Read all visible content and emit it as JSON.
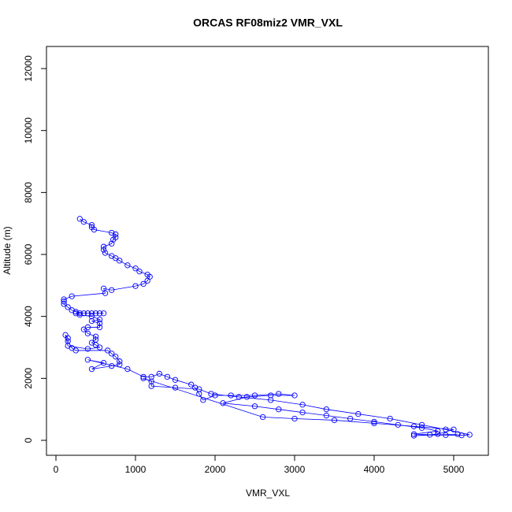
{
  "chart_data": {
    "type": "scatter",
    "title": "ORCAS RF08miz2 VMR_VXL",
    "x_label": "VMR_VXL",
    "y_label": "Altitude (m)",
    "color": "#0000ff",
    "lines": true,
    "xlim": [
      -119,
      5436
    ],
    "ylim": [
      -483,
      12713
    ],
    "xticks": [
      0,
      1000,
      2000,
      3000,
      4000,
      5000
    ],
    "yticks": [
      0,
      2000,
      4000,
      6000,
      8000,
      10000,
      12000
    ],
    "x": [
      300,
      350,
      450,
      450,
      480,
      700,
      750,
      750,
      720,
      700,
      600,
      600,
      620,
      700,
      750,
      800,
      900,
      1000,
      1050,
      1150,
      1180,
      1150,
      1100,
      1000,
      700,
      600,
      620,
      200,
      100,
      100,
      100,
      150,
      200,
      250,
      300,
      400,
      500,
      600,
      550,
      450,
      350,
      250,
      300,
      450,
      550,
      450,
      550,
      550,
      400,
      350,
      400,
      500,
      500,
      450,
      500,
      550,
      400,
      150,
      120,
      150,
      150,
      200,
      250,
      650,
      700,
      750,
      800,
      800,
      700,
      450,
      600,
      400,
      900,
      1100,
      1200,
      1300,
      1400,
      1500,
      1700,
      1750,
      1800,
      1850,
      2000,
      2200,
      2500,
      2800,
      3000,
      2700,
      2400,
      2100,
      2500,
      2800,
      3100,
      3400,
      3700,
      4000,
      4300,
      4600,
      4800,
      4500,
      4700,
      4900,
      5100,
      5200,
      4900,
      4600,
      4200,
      3800,
      3400,
      3100,
      2700,
      2300,
      1950,
      1800,
      1500,
      1200,
      1200,
      1100,
      2600,
      3000,
      3500,
      4000,
      4500,
      5000,
      4800,
      4500,
      5050
    ],
    "y": [
      7150,
      7050,
      6950,
      6880,
      6800,
      6700,
      6650,
      6550,
      6480,
      6350,
      6250,
      6150,
      6050,
      5950,
      5880,
      5800,
      5650,
      5550,
      5450,
      5350,
      5280,
      5150,
      5050,
      4980,
      4850,
      4900,
      4750,
      4650,
      4550,
      4480,
      4400,
      4300,
      4200,
      4150,
      4100,
      4100,
      4100,
      4100,
      4100,
      4100,
      4100,
      4100,
      4050,
      4000,
      3900,
      3850,
      3780,
      3650,
      3650,
      3580,
      3450,
      3350,
      3250,
      3150,
      3080,
      3000,
      2950,
      3050,
      3400,
      3300,
      3200,
      2980,
      2900,
      2900,
      2800,
      2700,
      2550,
      2450,
      2400,
      2300,
      2500,
      2600,
      2300,
      2050,
      2050,
      2150,
      2050,
      1950,
      1800,
      1700,
      1500,
      1300,
      1450,
      1450,
      1450,
      1500,
      1450,
      1450,
      1400,
      1200,
      1100,
      1000,
      900,
      800,
      700,
      600,
      500,
      400,
      300,
      200,
      180,
      170,
      160,
      180,
      350,
      500,
      700,
      850,
      1000,
      1150,
      1300,
      1400,
      1500,
      1650,
      1700,
      1750,
      1900,
      2000,
      750,
      700,
      650,
      550,
      450,
      350,
      200,
      150,
      200
    ]
  }
}
